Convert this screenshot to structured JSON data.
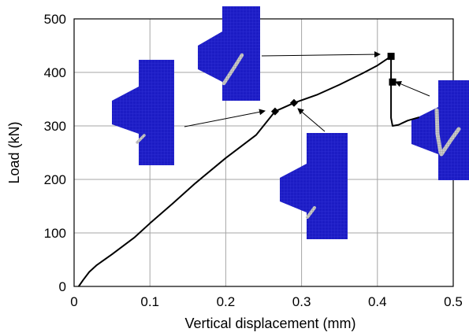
{
  "chart_data": {
    "type": "line",
    "xlabel": "Vertical displacement (mm)",
    "ylabel": "Load (kN)",
    "xlim": [
      0,
      0.5
    ],
    "ylim": [
      0,
      500
    ],
    "xticks": [
      0,
      0.1,
      0.2,
      0.3,
      0.4,
      0.5
    ],
    "yticks": [
      0,
      100,
      200,
      300,
      400,
      500
    ],
    "grid": true,
    "series": [
      {
        "values_xy": [
          [
            0.006,
            0
          ],
          [
            0.012,
            12
          ],
          [
            0.02,
            27
          ],
          [
            0.03,
            40
          ],
          [
            0.05,
            60
          ],
          [
            0.08,
            92
          ],
          [
            0.1,
            118
          ],
          [
            0.13,
            155
          ],
          [
            0.16,
            193
          ],
          [
            0.2,
            240
          ],
          [
            0.24,
            283
          ],
          [
            0.265,
            327
          ],
          [
            0.29,
            343
          ],
          [
            0.32,
            358
          ],
          [
            0.35,
            377
          ],
          [
            0.38,
            398
          ],
          [
            0.4,
            413
          ],
          [
            0.418,
            430
          ],
          [
            0.418,
            382
          ],
          [
            0.418,
            315
          ],
          [
            0.42,
            300
          ],
          [
            0.428,
            302
          ],
          [
            0.44,
            310
          ],
          [
            0.455,
            316
          ]
        ]
      }
    ],
    "markers": [
      {
        "shape": "diamond",
        "x": 0.265,
        "y": 327
      },
      {
        "shape": "diamond",
        "x": 0.29,
        "y": 343
      },
      {
        "shape": "square",
        "x": 0.418,
        "y": 430
      },
      {
        "shape": "square",
        "x": 0.42,
        "y": 382
      }
    ]
  },
  "insets": [
    {
      "name": "crack-inset-stage-1",
      "color": "#1a1abf",
      "mesh_color": "#2d2dd9",
      "crack_color": "#bfbfbf"
    },
    {
      "name": "crack-inset-stage-2",
      "color": "#1a1abf",
      "mesh_color": "#2d2dd9",
      "crack_color": "#bfbfbf"
    },
    {
      "name": "crack-inset-stage-3",
      "color": "#1a1abf",
      "mesh_color": "#2d2dd9",
      "crack_color": "#bfbfbf"
    },
    {
      "name": "crack-inset-stage-4",
      "color": "#1a1abf",
      "mesh_color": "#2d2dd9",
      "crack_color": "#bfbfbf"
    }
  ]
}
